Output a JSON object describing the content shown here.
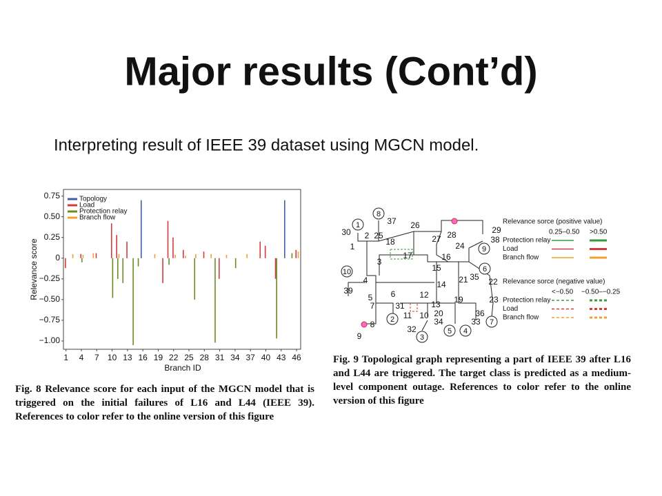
{
  "title": "Major results (Cont’d)",
  "subtitle": "Interpreting result of IEEE 39 dataset using MGCN model.",
  "chart_data": {
    "type": "bar",
    "x": [
      1,
      2,
      3,
      4,
      5,
      6,
      7,
      8,
      9,
      10,
      11,
      12,
      13,
      14,
      15,
      16,
      17,
      18,
      19,
      20,
      21,
      22,
      23,
      24,
      25,
      26,
      27,
      28,
      29,
      30,
      31,
      32,
      33,
      34,
      35,
      36,
      37,
      38,
      39,
      40,
      41,
      42,
      43,
      44,
      45,
      46
    ],
    "xlabel": "Branch ID",
    "ylabel": "Relevance score",
    "xlim": [
      0.5,
      46.8
    ],
    "xticks": [
      1,
      4,
      7,
      10,
      13,
      16,
      19,
      22,
      25,
      28,
      31,
      34,
      37,
      40,
      43,
      46
    ],
    "ylim": [
      -1.1,
      0.83
    ],
    "yticks": [
      {
        "value": 0.75,
        "label": "0.75"
      },
      {
        "value": 0.5,
        "label": "0.50"
      },
      {
        "value": 0.25,
        "label": "0.25"
      },
      0,
      {
        "value": -0.25,
        "label": "−0.25"
      },
      {
        "value": -0.5,
        "label": "−0.50"
      },
      {
        "value": -0.75,
        "label": "−0.75"
      },
      {
        "value": -1,
        "label": "−1.00"
      }
    ],
    "legend": "upper-left",
    "series": [
      {
        "name": "Topology",
        "color": "#3b5ea6",
        "values": [
          0,
          0,
          0,
          0,
          0,
          0,
          0,
          0,
          0,
          0,
          0,
          0,
          0,
          0,
          0,
          0.7,
          0,
          0,
          0,
          0,
          0,
          0,
          0,
          0,
          0,
          0,
          0,
          0,
          0,
          0,
          0,
          0,
          0,
          0,
          0,
          0,
          0,
          0,
          0,
          0,
          0,
          0,
          0,
          0.7,
          0,
          0
        ]
      },
      {
        "name": "Load",
        "color": "#d23b3b",
        "values": [
          -0.12,
          0,
          0,
          0.05,
          0,
          0,
          0.06,
          0,
          0,
          0.42,
          0.28,
          0,
          0.2,
          0,
          0,
          0,
          0,
          0,
          0,
          -0.3,
          0.45,
          0.25,
          0,
          0.1,
          0,
          0,
          0,
          0.08,
          0,
          0,
          -0.25,
          0,
          0,
          0,
          0,
          0,
          0,
          0,
          0.2,
          0.15,
          0,
          -0.25,
          0,
          0,
          0,
          0.1
        ]
      },
      {
        "name": "Protection relay",
        "color": "#6b8a23",
        "values": [
          0,
          0,
          0,
          -0.05,
          0,
          0,
          0,
          0,
          0,
          -0.48,
          -0.25,
          -0.3,
          0,
          -1.05,
          -0.1,
          0,
          0,
          0,
          0,
          0,
          -0.08,
          0,
          0,
          0,
          0,
          -0.5,
          0,
          0,
          0,
          -1.02,
          0,
          0,
          0,
          -0.12,
          0,
          0,
          0,
          0,
          0,
          0,
          0,
          -0.97,
          0,
          0,
          0.06,
          0
        ]
      },
      {
        "name": "Branch flow",
        "color": "#f0a030",
        "values": [
          0,
          0.05,
          0,
          0.04,
          0,
          0.06,
          0,
          0,
          0,
          0,
          0.05,
          0,
          0,
          0,
          0,
          0,
          0,
          0.05,
          0,
          0,
          0,
          0.04,
          0,
          0.03,
          0,
          0.05,
          0,
          0,
          0.05,
          0,
          0,
          0.04,
          0,
          0,
          0,
          0.05,
          0,
          0,
          0,
          0,
          0,
          0,
          0,
          0,
          0,
          0.08
        ]
      }
    ]
  },
  "caption8": "Fig. 8  Relevance score for each input of the MGCN model that is triggered on the initial failures of L16 and L44 (IEEE 39). References to color refer to the online version of this figure",
  "figure9": {
    "generators": [
      "1",
      "8",
      "10",
      "9",
      "6",
      "2",
      "3",
      "5",
      "4",
      "7"
    ],
    "buses": [
      "30",
      "2",
      "25",
      "37",
      "26",
      "28",
      "29",
      "38",
      "1",
      "18",
      "27",
      "24",
      "16",
      "17",
      "3",
      "15",
      "4",
      "39",
      "21",
      "35",
      "22",
      "14",
      "5",
      "6",
      "12",
      "7",
      "31",
      "13",
      "19",
      "23",
      "8",
      "11",
      "10",
      "20",
      "36",
      "34",
      "33",
      "32",
      "9"
    ],
    "legend": {
      "positive_title": "Relevance sorce (positive value)",
      "negative_title": "Relevance sorce (negative value)",
      "positive_ranges": [
        "0.25–0.50",
        ">0.50"
      ],
      "negative_ranges": [
        "<−0.50",
        "−0.50–−0.25"
      ],
      "rows": [
        "Protection relay",
        "Load",
        "Branch flow"
      ]
    },
    "caption": "Fig. 9  Topological graph representing a part of IEEE 39 after L16 and L44 are triggered. The target class is predicted as a medium-level component outage. References to color refer to the online version of this figure"
  }
}
